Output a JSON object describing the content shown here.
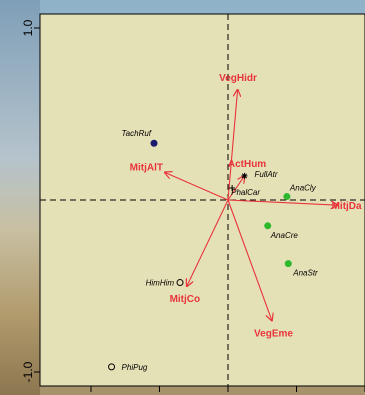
{
  "chart_data": {
    "type": "scatter",
    "title": "",
    "xlabel": "",
    "ylabel": "",
    "xlim": [
      -1.0,
      1.0
    ],
    "ylim": [
      -1.0,
      1.0
    ],
    "y_ticks": [
      "1.0",
      "-1.0"
    ],
    "grid": false,
    "zero_lines": "dashed",
    "vector_color": "#e8343c",
    "vectors": [
      {
        "name": "VegHidr",
        "x": 0.07,
        "y": 0.64
      },
      {
        "name": "ActHum",
        "x": 0.12,
        "y": 0.14
      },
      {
        "name": "MitjAlT",
        "x": -0.46,
        "y": 0.16
      },
      {
        "name": "MitjDa",
        "x": 0.8,
        "y": -0.03
      },
      {
        "name": "MitjCo",
        "x": -0.3,
        "y": -0.5
      },
      {
        "name": "VegEme",
        "x": 0.32,
        "y": -0.7
      }
    ],
    "species": [
      {
        "name": "TachRuf",
        "x": -0.54,
        "y": 0.33,
        "marker": "filled",
        "color": "#1a1a6e"
      },
      {
        "name": "FullAtr",
        "x": 0.12,
        "y": 0.14,
        "marker": "star",
        "color": "#000000"
      },
      {
        "name": "PhalCar",
        "x": 0.03,
        "y": 0.07,
        "marker": "plus",
        "color": "#000000"
      },
      {
        "name": "AnaCly",
        "x": 0.43,
        "y": 0.02,
        "marker": "filled",
        "color": "#2db82d"
      },
      {
        "name": "AnaCre",
        "x": 0.29,
        "y": -0.15,
        "marker": "filled",
        "color": "#2db82d"
      },
      {
        "name": "AnaStr",
        "x": 0.44,
        "y": -0.37,
        "marker": "filled",
        "color": "#2db82d"
      },
      {
        "name": "HimHim",
        "x": -0.35,
        "y": -0.48,
        "marker": "open",
        "color": "#000000"
      },
      {
        "name": "PhiPug",
        "x": -0.85,
        "y": -0.97,
        "marker": "open",
        "color": "#000000"
      }
    ]
  }
}
